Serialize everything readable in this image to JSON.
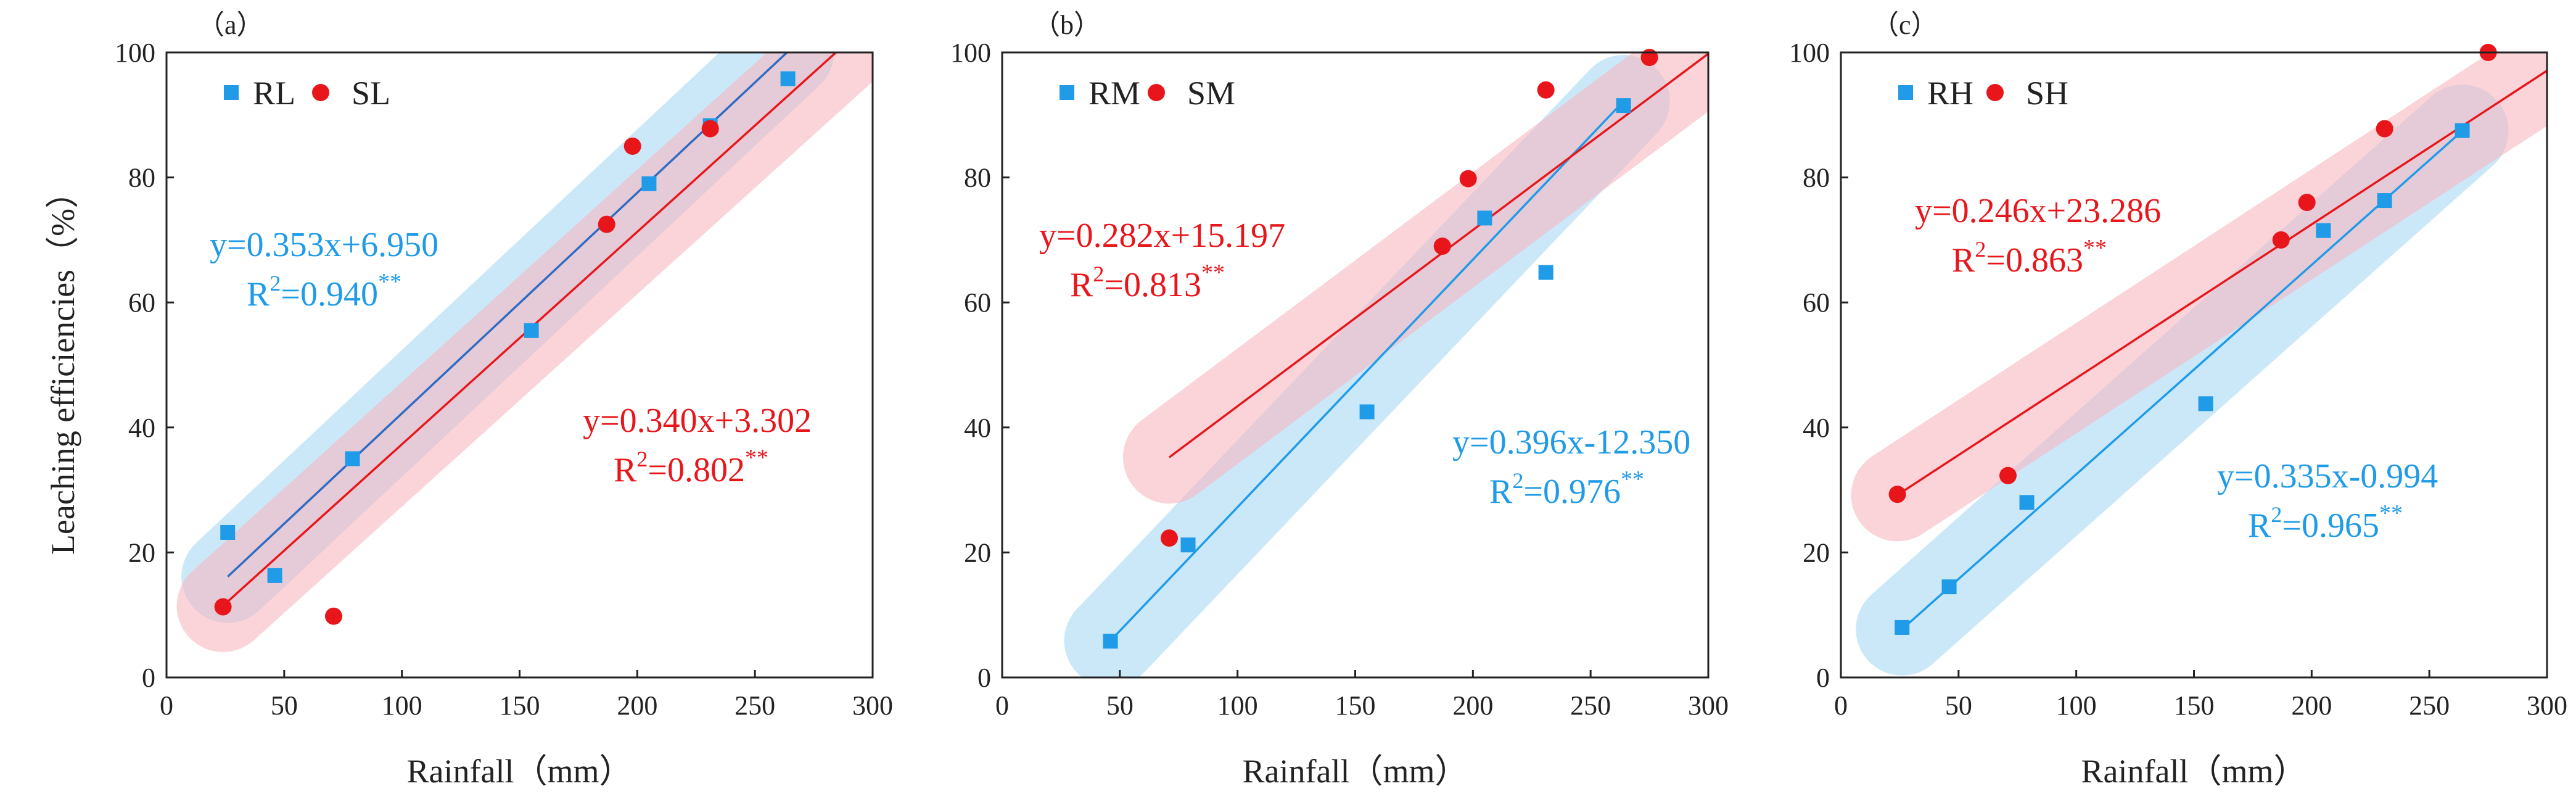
{
  "chart_data": [
    {
      "type": "scatter",
      "panel_label": "（a）",
      "xlabel": "Rainfall（mm）",
      "ylabel": "Leaching efficiencies（%）",
      "xlim": [
        0,
        300
      ],
      "ylim": [
        0,
        100
      ],
      "xticks": [
        "0",
        "50",
        "100",
        "150",
        "200",
        "250",
        "300"
      ],
      "yticks": [
        "0",
        "20",
        "40",
        "60",
        "80",
        "100"
      ],
      "legend_position": "top-left",
      "series": [
        {
          "name": "RL",
          "marker": "square",
          "color": "#1f9be8",
          "band_color": "#a9d8f5",
          "points": [
            [
              26,
              23.2
            ],
            [
              46,
              16.3
            ],
            [
              79,
              35.0
            ],
            [
              155,
              55.5
            ],
            [
              205,
              79.0
            ],
            [
              231,
              88.3
            ],
            [
              264,
              95.8
            ]
          ],
          "fit": {
            "slope": 0.353,
            "intercept": 6.95,
            "x_range": [
              26,
              264
            ],
            "line_color": "#2f6bc4"
          },
          "equation": "y=0.353x+6.950",
          "r2_prefix": "R",
          "r2_sup": "2",
          "r2_value": "=0.940",
          "signif": "**"
        },
        {
          "name": "SL",
          "marker": "circle",
          "color": "#e8161b",
          "band_color": "#f7b7bf",
          "points": [
            [
              24,
              11.3
            ],
            [
              71,
              9.8
            ],
            [
              187,
              72.5
            ],
            [
              198,
              85.0
            ],
            [
              231,
              87.8
            ]
          ],
          "fit": {
            "slope": 0.34,
            "intercept": 3.302,
            "x_range": [
              24,
              300
            ],
            "line_color": "#e8161b"
          },
          "equation": "y=0.340x+3.302",
          "r2_prefix": "R",
          "r2_sup": "2",
          "r2_value": "=0.802",
          "signif": "**"
        }
      ]
    },
    {
      "type": "scatter",
      "panel_label": "（b）",
      "xlabel": "Rainfall（mm）",
      "ylabel": "",
      "xlim": [
        0,
        300
      ],
      "ylim": [
        0,
        100
      ],
      "xticks": [
        "0",
        "50",
        "100",
        "150",
        "200",
        "250",
        "300"
      ],
      "yticks": [
        "0",
        "20",
        "40",
        "60",
        "80",
        "100"
      ],
      "legend_position": "top-left",
      "series": [
        {
          "name": "RM",
          "marker": "square",
          "color": "#1f9be8",
          "band_color": "#a9d8f5",
          "points": [
            [
              46,
              5.8
            ],
            [
              79,
              21.2
            ],
            [
              155,
              42.5
            ],
            [
              205,
              73.5
            ],
            [
              231,
              64.8
            ],
            [
              264,
              91.5
            ]
          ],
          "fit": {
            "slope": 0.396,
            "intercept": -12.35,
            "x_range": [
              46,
              264
            ],
            "line_color": "#1f9be8"
          },
          "equation": "y=0.396x-12.350",
          "r2_prefix": "R",
          "r2_sup": "2",
          "r2_value": "=0.976",
          "signif": "**"
        },
        {
          "name": "SM",
          "marker": "circle",
          "color": "#e8161b",
          "band_color": "#f7b7bf",
          "points": [
            [
              71,
              22.3
            ],
            [
              187,
              69.0
            ],
            [
              198,
              79.8
            ],
            [
              231,
              94.0
            ],
            [
              275,
              99.2
            ]
          ],
          "fit": {
            "slope": 0.282,
            "intercept": 15.197,
            "x_range": [
              71,
              300
            ],
            "line_color": "#e8161b"
          },
          "equation": "y=0.282x+15.197",
          "r2_prefix": "R",
          "r2_sup": "2",
          "r2_value": "=0.813",
          "signif": "**"
        }
      ]
    },
    {
      "type": "scatter",
      "panel_label": "（c）",
      "xlabel": "Rainfall（mm）",
      "ylabel": "",
      "xlim": [
        0,
        300
      ],
      "ylim": [
        0,
        100
      ],
      "xticks": [
        "0",
        "50",
        "100",
        "150",
        "200",
        "250",
        "300"
      ],
      "yticks": [
        "0",
        "20",
        "40",
        "60",
        "80",
        "100"
      ],
      "legend_position": "top-left",
      "series": [
        {
          "name": "RH",
          "marker": "square",
          "color": "#1f9be8",
          "band_color": "#a9d8f5",
          "points": [
            [
              26,
              8.0
            ],
            [
              46,
              14.5
            ],
            [
              79,
              28.0
            ],
            [
              155,
              43.8
            ],
            [
              205,
              71.5
            ],
            [
              231,
              76.3
            ],
            [
              264,
              87.5
            ]
          ],
          "fit": {
            "slope": 0.335,
            "intercept": -0.994,
            "x_range": [
              26,
              264
            ],
            "line_color": "#1f9be8"
          },
          "equation": "y=0.335x-0.994",
          "r2_prefix": "R",
          "r2_sup": "2",
          "r2_value": "=0.965",
          "signif": "**"
        },
        {
          "name": "SH",
          "marker": "circle",
          "color": "#e8161b",
          "band_color": "#f7b7bf",
          "points": [
            [
              24,
              29.3
            ],
            [
              71,
              32.3
            ],
            [
              187,
              70.0
            ],
            [
              198,
              76.0
            ],
            [
              231,
              87.8
            ],
            [
              275,
              100.0
            ]
          ],
          "fit": {
            "slope": 0.246,
            "intercept": 23.286,
            "x_range": [
              24,
              300
            ],
            "line_color": "#e8161b"
          },
          "equation": "y=0.246x+23.286",
          "r2_prefix": "R",
          "r2_sup": "2",
          "r2_value": "=0.863",
          "signif": "**"
        }
      ]
    }
  ]
}
